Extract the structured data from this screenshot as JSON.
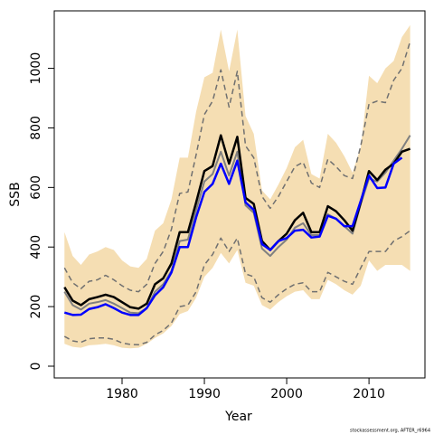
{
  "chart_data": {
    "type": "line",
    "xlabel": "Year",
    "ylabel": "SSB",
    "caption": "stockassessment.org, AFTER_r6964",
    "x": [
      1973,
      1974,
      1975,
      1976,
      1977,
      1978,
      1979,
      1980,
      1981,
      1982,
      1983,
      1984,
      1985,
      1986,
      1987,
      1988,
      1989,
      1990,
      1991,
      1992,
      1993,
      1994,
      1995,
      1996,
      1997,
      1998,
      1999,
      2000,
      2001,
      2002,
      2003,
      2004,
      2005,
      2006,
      2007,
      2008,
      2009,
      2010,
      2011,
      2012,
      2013,
      2014,
      2015
    ],
    "band": {
      "color": "#f5deb3",
      "upper": [
        450,
        370,
        340,
        375,
        385,
        400,
        390,
        355,
        335,
        330,
        360,
        455,
        480,
        560,
        700,
        700,
        855,
        970,
        985,
        1130,
        990,
        1130,
        840,
        780,
        590,
        560,
        610,
        665,
        735,
        760,
        645,
        630,
        780,
        750,
        705,
        650,
        735,
        975,
        950,
        1000,
        1025,
        1105,
        1145
      ],
      "lower": [
        75,
        65,
        62,
        70,
        72,
        75,
        70,
        62,
        60,
        62,
        75,
        95,
        110,
        135,
        175,
        185,
        230,
        300,
        330,
        380,
        345,
        390,
        280,
        270,
        205,
        190,
        215,
        235,
        250,
        255,
        225,
        225,
        290,
        275,
        255,
        240,
        270,
        355,
        320,
        340,
        340,
        340,
        320
      ]
    },
    "series": [
      {
        "color": "#707070",
        "dash": true,
        "width": 1.5,
        "values": [
          330,
          280,
          260,
          285,
          290,
          305,
          290,
          270,
          255,
          250,
          275,
          345,
          385,
          460,
          580,
          585,
          710,
          845,
          890,
          995,
          870,
          990,
          740,
          700,
          570,
          530,
          570,
          620,
          670,
          685,
          615,
          600,
          695,
          670,
          640,
          630,
          740,
          880,
          890,
          885,
          960,
          1000,
          1090
        ]
      },
      {
        "color": "#707070",
        "dash": true,
        "width": 1.5,
        "values": [
          100,
          85,
          80,
          92,
          95,
          95,
          90,
          78,
          73,
          72,
          80,
          105,
          120,
          145,
          200,
          205,
          250,
          340,
          375,
          430,
          385,
          430,
          310,
          300,
          230,
          215,
          240,
          260,
          275,
          280,
          250,
          250,
          315,
          300,
          285,
          275,
          330,
          385,
          385,
          385,
          420,
          435,
          455
        ]
      },
      {
        "color": "#808080",
        "dash": false,
        "width": 2,
        "values": [
          250,
          205,
          190,
          210,
          215,
          222,
          210,
          195,
          180,
          178,
          195,
          250,
          275,
          320,
          420,
          425,
          525,
          620,
          645,
          720,
          640,
          720,
          540,
          515,
          395,
          370,
          400,
          425,
          465,
          480,
          440,
          440,
          510,
          495,
          470,
          445,
          545,
          630,
          620,
          650,
          690,
          730,
          775
        ]
      },
      {
        "color": "#000000",
        "dash": false,
        "width": 2.5,
        "values": [
          265,
          220,
          205,
          225,
          232,
          240,
          232,
          215,
          198,
          193,
          210,
          275,
          295,
          345,
          450,
          450,
          550,
          655,
          672,
          775,
          680,
          770,
          565,
          545,
          420,
          390,
          420,
          445,
          490,
          515,
          450,
          450,
          537,
          520,
          490,
          455,
          550,
          655,
          625,
          660,
          680,
          720,
          730
        ]
      },
      {
        "color": "#0000ff",
        "dash": false,
        "width": 2.5,
        "values": [
          180,
          172,
          173,
          192,
          198,
          208,
          195,
          180,
          172,
          172,
          195,
          238,
          265,
          315,
          400,
          400,
          500,
          585,
          612,
          680,
          612,
          690,
          550,
          525,
          410,
          390,
          420,
          430,
          455,
          458,
          432,
          435,
          505,
          495,
          470,
          470,
          555,
          640,
          598,
          600,
          680,
          700,
          null
        ]
      }
    ],
    "xlim": [
      1971.76,
      2016.8
    ],
    "ylim": [
      -39.5,
      1193
    ],
    "xticks": [
      1980,
      1990,
      2000,
      2010
    ],
    "yticks": [
      0,
      200,
      400,
      600,
      800,
      1000
    ]
  }
}
